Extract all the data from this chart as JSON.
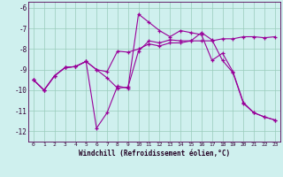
{
  "xlabel": "Windchill (Refroidissement éolien,°C)",
  "xlim": [
    -0.5,
    23.5
  ],
  "ylim": [
    -12.5,
    -5.7
  ],
  "yticks": [
    -12,
    -11,
    -10,
    -9,
    -8,
    -7,
    -6
  ],
  "xticks": [
    0,
    1,
    2,
    3,
    4,
    5,
    6,
    7,
    8,
    9,
    10,
    11,
    12,
    13,
    14,
    15,
    16,
    17,
    18,
    19,
    20,
    21,
    22,
    23
  ],
  "bg_color": "#cff0ee",
  "line_color": "#990099",
  "series": [
    {
      "x": [
        0,
        1,
        2,
        3,
        4,
        5,
        6,
        7,
        8,
        9,
        10,
        11,
        12,
        13,
        14,
        15,
        16,
        17,
        18,
        19,
        20,
        21,
        22,
        23
      ],
      "y": [
        -9.5,
        -10.0,
        -9.3,
        -8.9,
        -8.85,
        -8.6,
        -9.0,
        -9.1,
        -8.1,
        -8.15,
        -8.0,
        -7.75,
        -7.85,
        -7.7,
        -7.7,
        -7.6,
        -7.6,
        -7.6,
        -7.5,
        -7.5,
        -7.4,
        -7.4,
        -7.45,
        -7.4
      ]
    },
    {
      "x": [
        0,
        1,
        2,
        3,
        4,
        5,
        6,
        7,
        8,
        9,
        10,
        11,
        12,
        13,
        14,
        15,
        16,
        17,
        18,
        19,
        20,
        21,
        22,
        23
      ],
      "y": [
        -9.5,
        -10.0,
        -9.3,
        -8.9,
        -8.85,
        -8.6,
        -11.85,
        -11.1,
        -9.8,
        -9.9,
        -6.3,
        -6.7,
        -7.1,
        -7.4,
        -7.1,
        -7.2,
        -7.3,
        -8.55,
        -8.2,
        -9.1,
        -10.6,
        -11.1,
        -11.3,
        -11.45
      ]
    },
    {
      "x": [
        0,
        1,
        2,
        3,
        4,
        5,
        6,
        7,
        8,
        9,
        10,
        11,
        12,
        13,
        14,
        15,
        16,
        17,
        18,
        19,
        20,
        21,
        22,
        23
      ],
      "y": [
        -9.5,
        -10.0,
        -9.3,
        -8.9,
        -8.85,
        -8.6,
        -9.0,
        -9.4,
        -9.9,
        -9.85,
        -8.1,
        -7.6,
        -7.7,
        -7.55,
        -7.6,
        -7.6,
        -7.2,
        -7.55,
        -8.55,
        -9.15,
        -10.65,
        -11.1,
        -11.3,
        -11.45
      ]
    }
  ]
}
